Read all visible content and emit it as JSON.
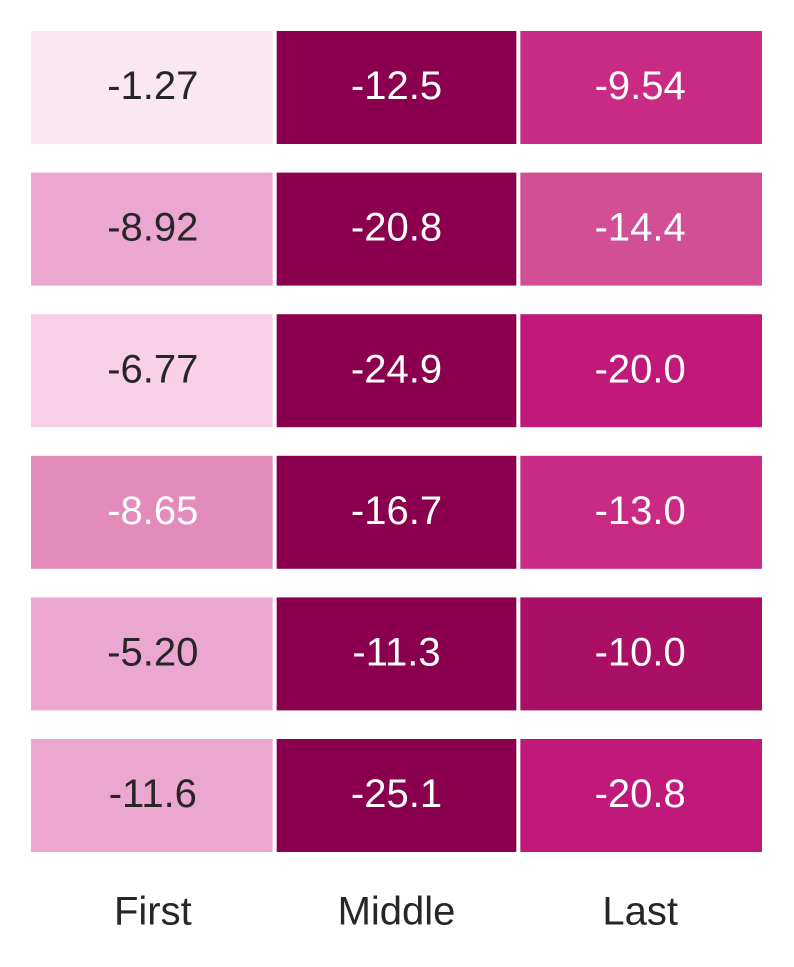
{
  "chart_data": {
    "type": "heatmap",
    "x": [
      "First",
      "Middle",
      "Last"
    ],
    "values": [
      [
        -1.27,
        -12.5,
        -9.54
      ],
      [
        -8.92,
        -20.8,
        -14.4
      ],
      [
        -6.77,
        -24.9,
        -20.0
      ],
      [
        -8.65,
        -16.7,
        -13.0
      ],
      [
        -5.2,
        -11.3,
        -10.0
      ],
      [
        -11.6,
        -25.1,
        -20.8
      ]
    ],
    "value_labels": [
      [
        "-1.27",
        "-12.5",
        "-9.54"
      ],
      [
        "-8.92",
        "-20.8",
        "-14.4"
      ],
      [
        "-6.77",
        "-24.9",
        "-20.0"
      ],
      [
        "-8.65",
        "-16.7",
        "-13.0"
      ],
      [
        "-5.20",
        "-11.3",
        "-10.0"
      ],
      [
        "-11.6",
        "-25.1",
        "-20.8"
      ]
    ],
    "cell_colors": [
      [
        "#f9e8f1",
        "#8b004e",
        "#c92a84"
      ],
      [
        "#eba7cf",
        "#8b004e",
        "#d24f96"
      ],
      [
        "#f8d0e7",
        "#8b004e",
        "#c0197a"
      ],
      [
        "#e38bbb",
        "#8b004e",
        "#c92a84"
      ],
      [
        "#eba7cf",
        "#8b004e",
        "#a80f65"
      ],
      [
        "#eba7cf",
        "#8b004e",
        "#c0197a"
      ]
    ],
    "text_colors": [
      [
        "#262626",
        "#ffffff",
        "#ffffff"
      ],
      [
        "#262626",
        "#ffffff",
        "#ffffff"
      ],
      [
        "#262626",
        "#ffffff",
        "#ffffff"
      ],
      [
        "#ffffff",
        "#ffffff",
        "#ffffff"
      ],
      [
        "#262626",
        "#ffffff",
        "#ffffff"
      ],
      [
        "#262626",
        "#ffffff",
        "#ffffff"
      ]
    ]
  }
}
